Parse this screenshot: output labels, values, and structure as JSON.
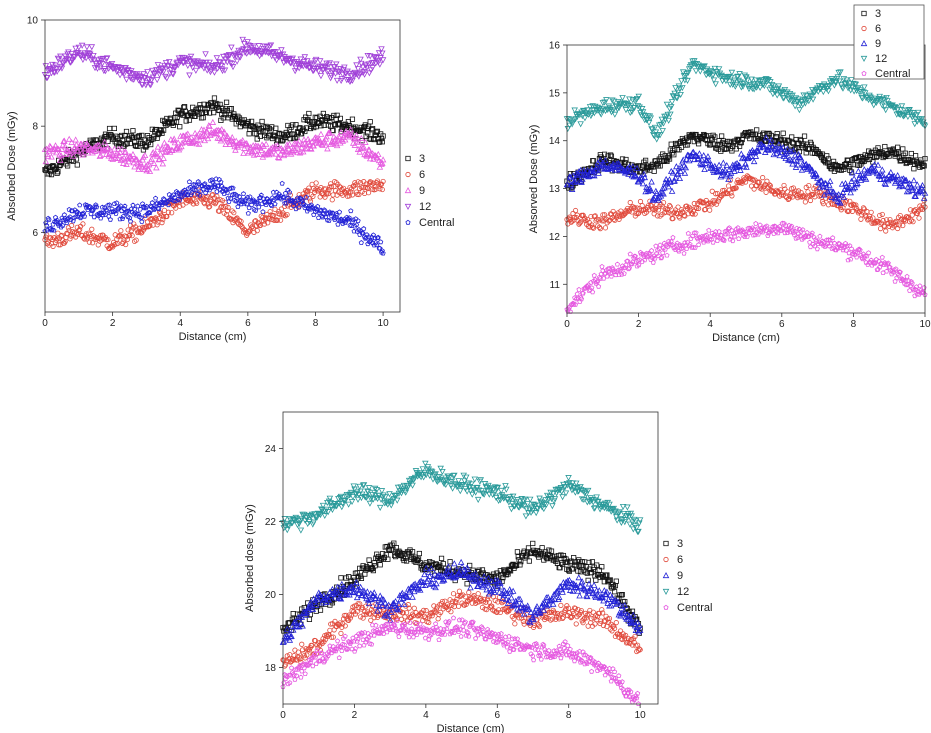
{
  "chart_data": [
    {
      "type": "scatter",
      "xlabel": "Distance (cm)",
      "ylabel": "Absorbed Dose (mGy)",
      "xlim": [
        0,
        10.5
      ],
      "ylim": [
        4.5,
        10
      ],
      "xticks": [
        0,
        2,
        4,
        6,
        8,
        10
      ],
      "yticks": [
        6,
        8,
        10
      ],
      "legend_position": "right",
      "series": [
        {
          "name": "3",
          "color": "#111111",
          "marker": "square",
          "x": [
            0,
            1,
            2,
            3,
            4,
            5,
            6,
            7,
            8,
            9,
            10
          ],
          "y": [
            7.1,
            7.5,
            7.8,
            7.7,
            8.2,
            8.4,
            8.0,
            7.8,
            8.1,
            8.0,
            7.8
          ]
        },
        {
          "name": "6",
          "color": "#e0483a",
          "marker": "circle",
          "x": [
            0,
            1,
            2,
            3,
            4,
            5,
            6,
            7,
            8,
            9,
            10
          ],
          "y": [
            5.8,
            6.0,
            5.8,
            6.1,
            6.6,
            6.6,
            6.0,
            6.4,
            6.8,
            6.8,
            6.9
          ]
        },
        {
          "name": "9",
          "color": "#e55ae0",
          "marker": "triangle-up",
          "x": [
            0,
            1,
            2,
            3,
            4,
            5,
            6,
            7,
            8,
            9,
            10
          ],
          "y": [
            7.5,
            7.6,
            7.5,
            7.3,
            7.7,
            7.9,
            7.6,
            7.5,
            7.7,
            7.8,
            7.3
          ]
        },
        {
          "name": "12",
          "color": "#a040d8",
          "marker": "triangle-down",
          "x": [
            0,
            1,
            2,
            3,
            4,
            5,
            6,
            7,
            8,
            9,
            10
          ],
          "y": [
            9.0,
            9.4,
            9.1,
            8.9,
            9.2,
            9.1,
            9.5,
            9.3,
            9.1,
            9.0,
            9.3
          ]
        },
        {
          "name": "Central",
          "color": "#2323d6",
          "marker": "pentagon",
          "x": [
            0,
            1,
            2,
            3,
            4,
            5,
            6,
            7,
            8,
            9,
            10
          ],
          "y": [
            6.1,
            6.4,
            6.4,
            6.4,
            6.7,
            6.9,
            6.5,
            6.7,
            6.4,
            6.2,
            5.7
          ]
        }
      ]
    },
    {
      "type": "scatter",
      "xlabel": "Distance (cm)",
      "ylabel": "Absorved Dose (mGy)",
      "xlim": [
        0,
        10
      ],
      "ylim": [
        10.4,
        16
      ],
      "xticks": [
        0,
        2,
        4,
        6,
        8,
        10
      ],
      "yticks": [
        11,
        12,
        13,
        14,
        15,
        16
      ],
      "legend_position": "top-right",
      "series": [
        {
          "name": "3",
          "color": "#111111",
          "marker": "square",
          "x": [
            0,
            1,
            2,
            2.5,
            3.5,
            4.5,
            5,
            6,
            7,
            7.5,
            9,
            10
          ],
          "y": [
            13.1,
            13.6,
            13.4,
            13.5,
            14.1,
            13.9,
            14.1,
            14.0,
            13.8,
            13.4,
            13.8,
            13.5
          ]
        },
        {
          "name": "6",
          "color": "#e0483a",
          "marker": "circle",
          "x": [
            0,
            1,
            2,
            3,
            4,
            5,
            6,
            7,
            8,
            9,
            10
          ],
          "y": [
            12.4,
            12.3,
            12.6,
            12.5,
            12.7,
            13.2,
            12.9,
            12.9,
            12.6,
            12.2,
            12.6
          ]
        },
        {
          "name": "9",
          "color": "#2323d6",
          "marker": "triangle-up",
          "x": [
            0,
            1,
            2,
            2.5,
            3.5,
            4.5,
            5.5,
            6.5,
            7.5,
            8.5,
            10
          ],
          "y": [
            13.1,
            13.5,
            13.3,
            12.8,
            13.7,
            13.3,
            13.9,
            13.6,
            12.8,
            13.4,
            12.9
          ]
        },
        {
          "name": "12",
          "color": "#2a9a9a",
          "marker": "triangle-down",
          "x": [
            0,
            1,
            2,
            2.5,
            3.5,
            4.5,
            5.5,
            6.5,
            7.5,
            8.5,
            10
          ],
          "y": [
            14.4,
            14.7,
            14.8,
            14.1,
            15.6,
            15.3,
            15.2,
            14.8,
            15.3,
            14.9,
            14.4
          ]
        },
        {
          "name": "Central",
          "color": "#e55ae0",
          "marker": "pentagon",
          "x": [
            0,
            1,
            2,
            3,
            4,
            5,
            6,
            7,
            8,
            9,
            10
          ],
          "y": [
            10.5,
            11.2,
            11.5,
            11.8,
            12.0,
            12.1,
            12.2,
            11.9,
            11.7,
            11.3,
            10.8
          ]
        }
      ]
    },
    {
      "type": "scatter",
      "xlabel": "Distance (cm)",
      "ylabel": "Absorbed dose (mGy)",
      "xlim": [
        0,
        10.5
      ],
      "ylim": [
        17,
        25
      ],
      "xticks": [
        0,
        2,
        4,
        6,
        8,
        10
      ],
      "yticks": [
        18,
        20,
        22,
        24
      ],
      "legend_position": "right",
      "series": [
        {
          "name": "3",
          "color": "#111111",
          "marker": "square",
          "x": [
            0,
            1,
            2,
            3,
            4,
            5,
            6,
            7,
            8,
            9,
            10
          ],
          "y": [
            19.0,
            19.8,
            20.4,
            21.3,
            20.8,
            20.6,
            20.4,
            21.2,
            20.8,
            20.6,
            19.0
          ]
        },
        {
          "name": "6",
          "color": "#e0483a",
          "marker": "circle",
          "x": [
            0,
            1,
            2,
            3,
            4,
            5,
            6,
            7,
            8,
            9,
            10
          ],
          "y": [
            18.1,
            18.6,
            19.6,
            19.5,
            19.4,
            19.9,
            19.7,
            19.3,
            19.5,
            19.3,
            18.5
          ]
        },
        {
          "name": "9",
          "color": "#2323d6",
          "marker": "triangle-up",
          "x": [
            0,
            1,
            2,
            3,
            4,
            5,
            6,
            7,
            8,
            9,
            10
          ],
          "y": [
            18.7,
            19.9,
            20.2,
            19.6,
            20.4,
            20.6,
            20.2,
            19.4,
            20.3,
            20.0,
            19.1
          ]
        },
        {
          "name": "12",
          "color": "#2a9a9a",
          "marker": "triangle-down",
          "x": [
            0,
            1,
            2,
            3,
            4,
            5,
            6,
            7,
            8,
            9,
            10
          ],
          "y": [
            21.9,
            22.2,
            22.8,
            22.6,
            23.4,
            23.0,
            22.8,
            22.3,
            23.0,
            22.4,
            21.9
          ]
        },
        {
          "name": "Central",
          "color": "#e55ae0",
          "marker": "pentagon",
          "x": [
            0,
            1,
            2,
            3,
            4,
            5,
            6,
            7,
            8,
            9,
            10
          ],
          "y": [
            17.6,
            18.3,
            18.7,
            19.1,
            19.0,
            19.1,
            18.8,
            18.5,
            18.4,
            18.0,
            17.0
          ]
        }
      ]
    }
  ]
}
